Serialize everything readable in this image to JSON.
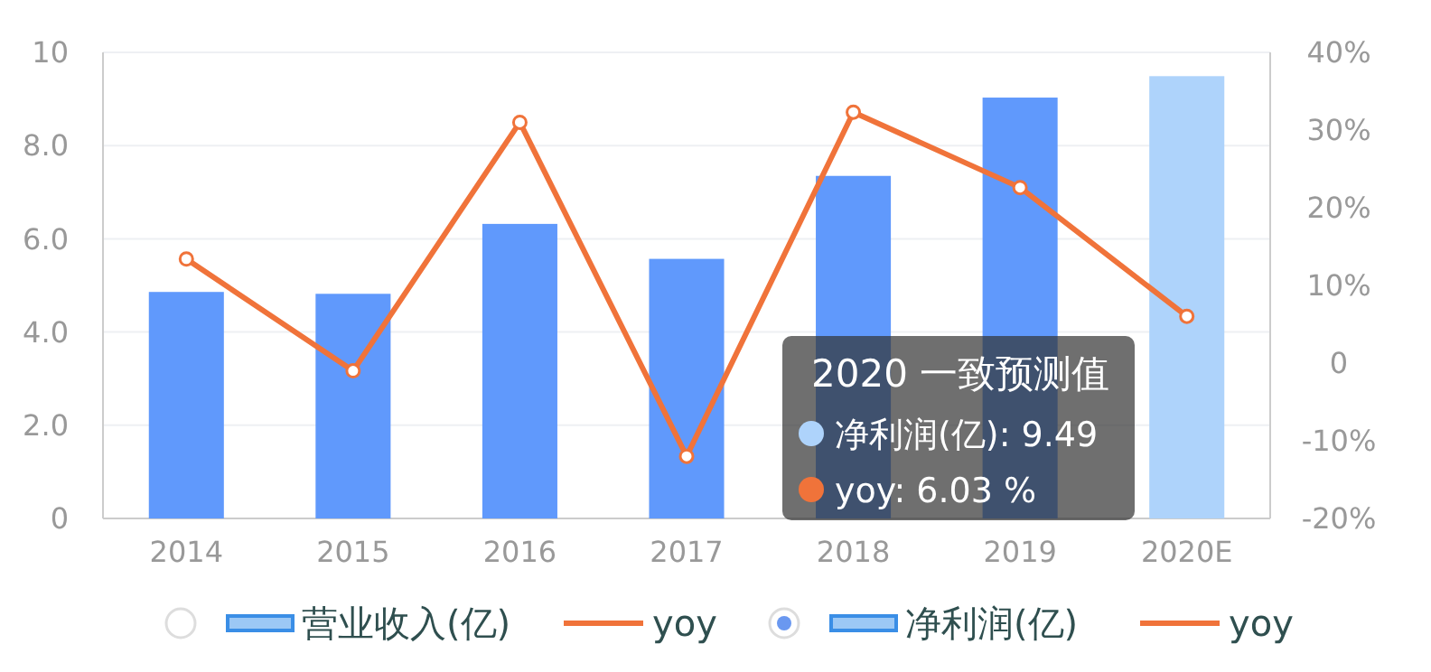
{
  "chart_data": {
    "type": "bar",
    "categories": [
      "2014",
      "2015",
      "2016",
      "2017",
      "2018",
      "2019",
      "2020E"
    ],
    "series": [
      {
        "name": "净利润(亿)",
        "color": "#6099fc",
        "colors": [
          "#6099fc",
          "#6099fc",
          "#6099fc",
          "#6099fc",
          "#6099fc",
          "#6099fc",
          "#aed3fb"
        ],
        "values": [
          4.86,
          4.82,
          6.32,
          5.57,
          7.35,
          9.03,
          9.49
        ]
      },
      {
        "name": "yoy",
        "type": "line",
        "axis": "y2",
        "color": "#f0733a",
        "values": [
          13.4,
          -1.0,
          31.0,
          -12.0,
          32.3,
          22.6,
          6.03
        ]
      }
    ],
    "ylim": [
      0,
      10
    ],
    "yticks": [
      0,
      {
        "value": 2,
        "label": "2.0"
      },
      {
        "value": 4,
        "label": "4.0"
      },
      {
        "value": 6,
        "label": "6.0"
      },
      {
        "value": 8,
        "label": "8.0"
      },
      10
    ],
    "y2lim": [
      -20,
      40
    ],
    "y2ticks": [
      {
        "value": -20,
        "label": "-20%"
      },
      {
        "value": -10,
        "label": "-10%"
      },
      0,
      {
        "value": 10,
        "label": "10%"
      },
      {
        "value": 20,
        "label": "20%"
      },
      {
        "value": 30,
        "label": "30%"
      },
      {
        "value": 40,
        "label": "40%"
      }
    ],
    "grid": "y",
    "legend": "bottom",
    "marker": "circle",
    "line_style": "solid",
    "annotations": [
      "2020 一致预测值",
      "净利润(亿): 9.49",
      "yoy: 6.03 %",
      "营业收入(亿)",
      "yoy"
    ]
  }
}
